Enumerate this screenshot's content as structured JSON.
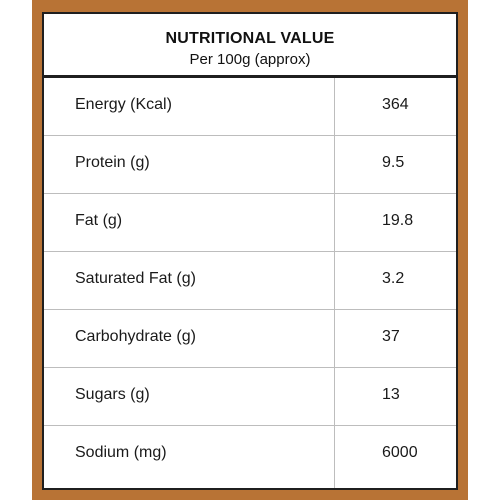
{
  "title": "NUTRITIONAL VALUE",
  "subtitle": "Per 100g (approx)",
  "rows": [
    {
      "label": "Energy (Kcal)",
      "value": "364"
    },
    {
      "label": "Protein (g)",
      "value": "9.5"
    },
    {
      "label": "Fat (g)",
      "value": "19.8"
    },
    {
      "label": "Saturated Fat (g)",
      "value": "3.2"
    },
    {
      "label": "Carbohydrate (g)",
      "value": "37"
    },
    {
      "label": "Sugars (g)",
      "value": "13"
    },
    {
      "label": "Sodium (mg)",
      "value": "6000"
    }
  ],
  "colors": {
    "frame": "#b87335",
    "border": "#1f1f1f",
    "grid": "#bdbdbd"
  }
}
